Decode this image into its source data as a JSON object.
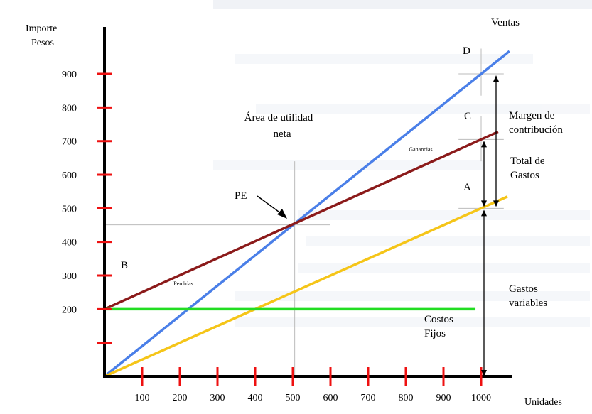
{
  "chart_data": {
    "type": "line",
    "ylabel": "Importe\nPesos",
    "xlabel": "Unidades",
    "x_ticks": [
      100,
      200,
      300,
      400,
      500,
      600,
      700,
      800,
      900,
      1000
    ],
    "y_ticks": [
      200,
      300,
      400,
      500,
      600,
      700,
      800,
      900
    ],
    "xlim": [
      0,
      1000
    ],
    "ylim": [
      0,
      1000
    ],
    "series": [
      {
        "name": "Ventas",
        "color": "#4a7fe8",
        "x": [
          0,
          1000
        ],
        "y": [
          0,
          900
        ]
      },
      {
        "name": "",
        "color": "#8b1a1a",
        "x": [
          0,
          1000
        ],
        "y": [
          200,
          705
        ]
      },
      {
        "name": "",
        "color": "#f5c518",
        "x": [
          0,
          1000
        ],
        "y": [
          0,
          500
        ]
      },
      {
        "name": "Costos Fijos",
        "color": "#22dd22",
        "x": [
          0,
          985
        ],
        "y": [
          200,
          200
        ]
      }
    ],
    "break_even": {
      "label": "PE",
      "x": 505,
      "y": 455
    },
    "annotations": {
      "area": "Área de utilidad neta",
      "ganancias": "Ganancias",
      "perdidas": "Perdidas",
      "D": "D",
      "C": "C",
      "A": "A",
      "B": "B",
      "margen": "Margen de contribución",
      "total_gastos": "Total de Gastos",
      "gastos_variables": "Gastos variables",
      "costos_fijos": "Costos Fijos",
      "ventas": "Ventas"
    },
    "colors": {
      "axis": "#000000",
      "tick_marks": "#ee1111",
      "guide": "#bbbbbb"
    }
  }
}
